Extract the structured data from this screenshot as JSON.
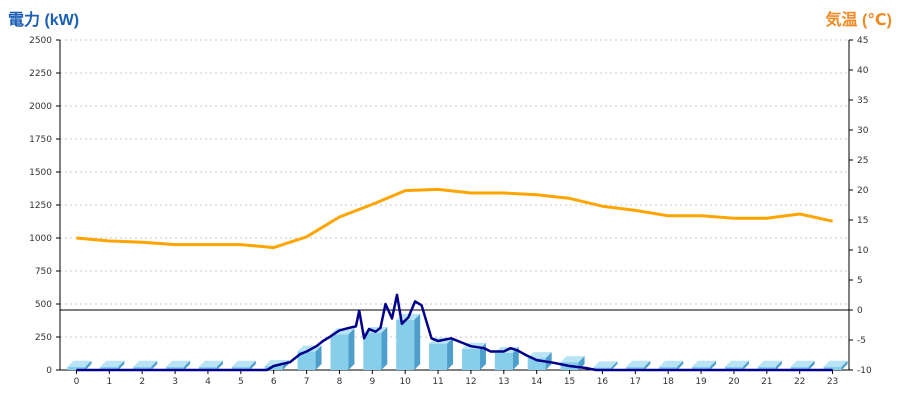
{
  "chart_data": {
    "type": "bar+line",
    "left_axis_title": "電力 (kW)",
    "right_axis_title": "気温 (℃)",
    "left_ylim": [
      0,
      2500
    ],
    "left_ticks": [
      0,
      250,
      500,
      750,
      1000,
      1250,
      1500,
      1750,
      2000,
      2250,
      2500
    ],
    "right_ylim": [
      -10,
      45
    ],
    "right_ticks": [
      -10,
      -5,
      0,
      5,
      10,
      15,
      20,
      25,
      30,
      35,
      40,
      45
    ],
    "x_ticks": [
      0,
      1,
      2,
      3,
      4,
      5,
      6,
      7,
      8,
      9,
      10,
      11,
      12,
      13,
      14,
      15,
      16,
      17,
      18,
      19,
      20,
      21,
      22,
      23
    ],
    "grid": true,
    "reference_line_temp": 0,
    "bars_power_kw": [
      25,
      25,
      25,
      25,
      25,
      25,
      30,
      140,
      270,
      280,
      380,
      200,
      160,
      130,
      90,
      60,
      20,
      25,
      25,
      25,
      25,
      25,
      25,
      25
    ],
    "temperature_c": [
      12.0,
      11.5,
      11.3,
      10.9,
      10.9,
      10.9,
      10.4,
      12.2,
      15.5,
      17.6,
      19.9,
      20.1,
      19.5,
      19.5,
      19.2,
      18.6,
      17.3,
      16.6,
      15.7,
      15.7,
      15.3,
      15.3,
      16.0,
      14.8
    ],
    "power_line_kw": [
      [
        0,
        0
      ],
      [
        1,
        0
      ],
      [
        2,
        0
      ],
      [
        3,
        0
      ],
      [
        4,
        0
      ],
      [
        5,
        0
      ],
      [
        5.8,
        0
      ],
      [
        6,
        30
      ],
      [
        6.5,
        60
      ],
      [
        6.8,
        120
      ],
      [
        7,
        140
      ],
      [
        7.3,
        180
      ],
      [
        7.5,
        220
      ],
      [
        7.7,
        250
      ],
      [
        8,
        300
      ],
      [
        8.3,
        320
      ],
      [
        8.5,
        330
      ],
      [
        8.6,
        450
      ],
      [
        8.75,
        240
      ],
      [
        8.9,
        310
      ],
      [
        9.1,
        290
      ],
      [
        9.25,
        320
      ],
      [
        9.4,
        500
      ],
      [
        9.6,
        390
      ],
      [
        9.75,
        570
      ],
      [
        9.9,
        350
      ],
      [
        10.1,
        400
      ],
      [
        10.3,
        520
      ],
      [
        10.5,
        490
      ],
      [
        10.8,
        240
      ],
      [
        11,
        220
      ],
      [
        11.4,
        240
      ],
      [
        11.8,
        200
      ],
      [
        12,
        180
      ],
      [
        12.4,
        165
      ],
      [
        12.6,
        140
      ],
      [
        13,
        140
      ],
      [
        13.2,
        165
      ],
      [
        13.4,
        150
      ],
      [
        13.7,
        110
      ],
      [
        14,
        75
      ],
      [
        14.5,
        55
      ],
      [
        15,
        30
      ],
      [
        15.5,
        15
      ],
      [
        15.8,
        0
      ],
      [
        16,
        0
      ],
      [
        17,
        0
      ],
      [
        18,
        0
      ],
      [
        19,
        0
      ],
      [
        20,
        0
      ],
      [
        21,
        0
      ],
      [
        22,
        0
      ],
      [
        23,
        0
      ]
    ],
    "colors": {
      "bar_front": "#87ceeb",
      "bar_top": "#b9e4f6",
      "bar_side": "#4e9fcc",
      "power_line": "#00008b",
      "temperature_line": "#ffa500",
      "left_title": "#1a5fb4",
      "right_title": "#f08a24",
      "grid": "#c8c8c8"
    }
  }
}
